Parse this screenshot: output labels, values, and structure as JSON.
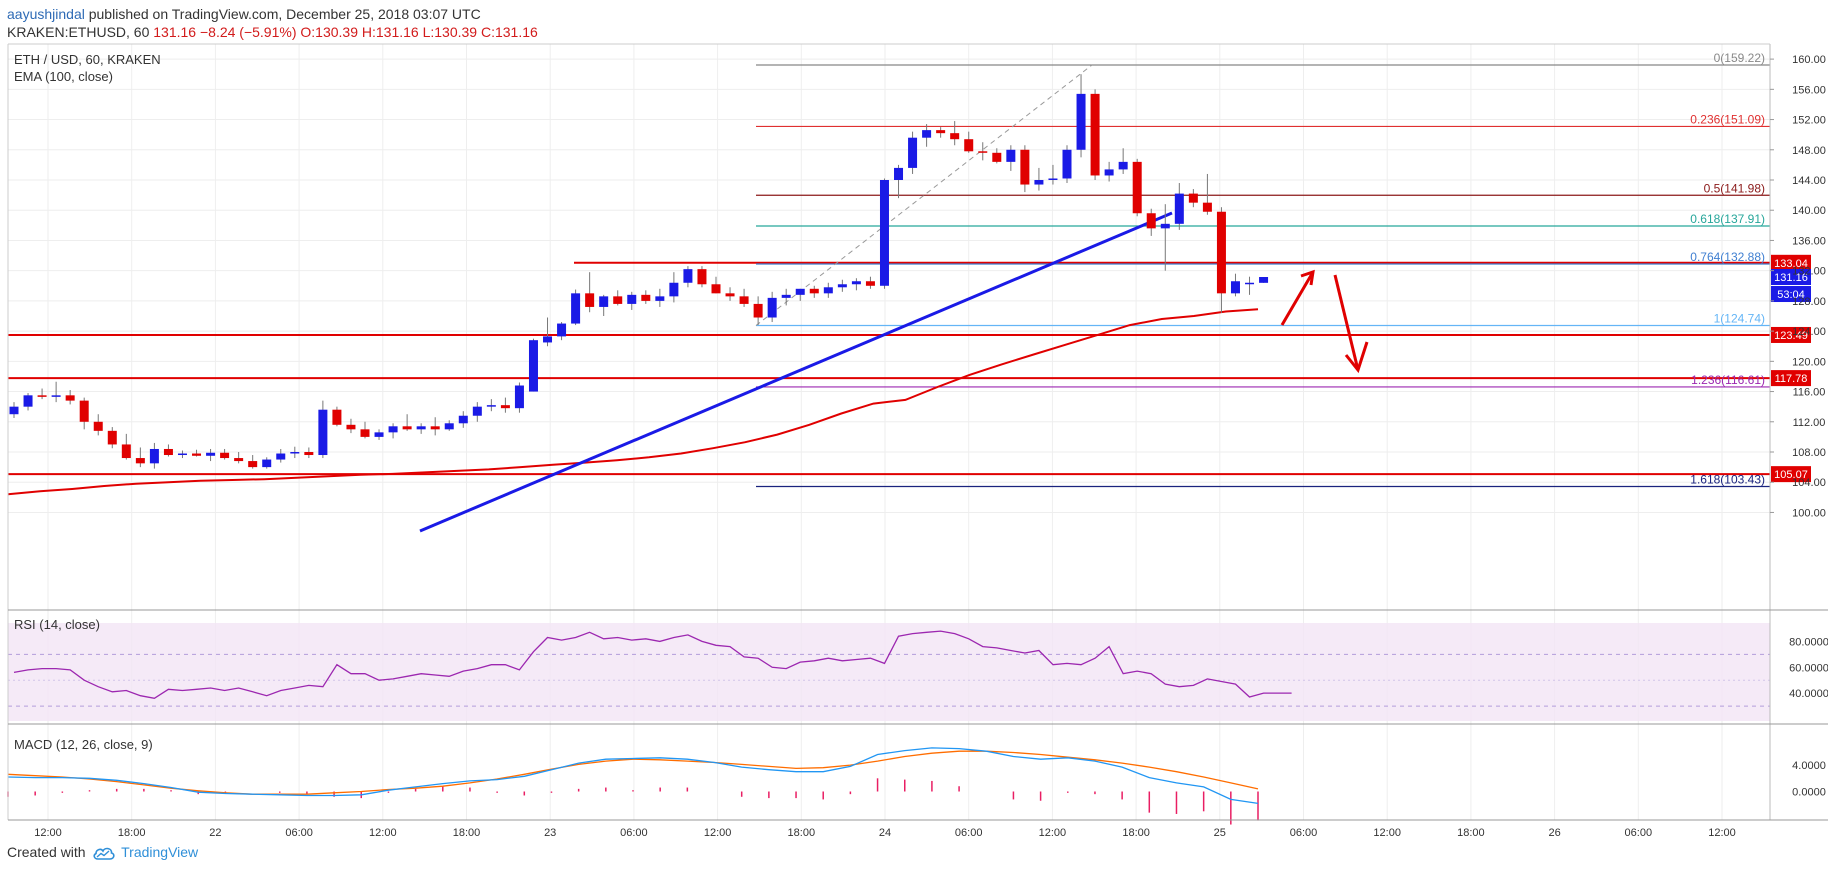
{
  "header": {
    "author": "aayushjindal",
    "published": "published on TradingView.com, December 25, 2018 03:07 UTC",
    "ticker": "KRAKEN:ETHUSD, 60",
    "change": "131.16 −8.24 (−5.91%)",
    "ohlc": "O:130.39 H:131.16 L:130.39 C:131.16"
  },
  "legend": {
    "symbol": "ETH / USD, 60, KRAKEN",
    "ema": "EMA (100, close)",
    "rsi": "RSI (14, close)",
    "macd": "MACD (12, 26, close, 9)"
  },
  "footer": {
    "created": "Created with",
    "brand": "TradingView"
  },
  "colors": {
    "bull": "#1a1ae6",
    "bear": "#e00000",
    "ema": "#e00000",
    "trendline": "#1a1ae6",
    "rsi": "#9c27b0",
    "macd": "#2196f3",
    "signal": "#ff6d00",
    "hist": "#e91e63"
  },
  "chart_data": {
    "type": "candlestick",
    "ylim": [
      99,
      162
    ],
    "price_axis": [
      "160.00",
      "156.00",
      "152.00",
      "148.00",
      "144.00",
      "140.00",
      "136.00",
      "132.00",
      "128.00",
      "124.00",
      "120.00",
      "116.00",
      "112.00",
      "108.00",
      "104.00",
      "100.00"
    ],
    "time_axis": [
      "12:00",
      "18:00",
      "22",
      "06:00",
      "12:00",
      "18:00",
      "23",
      "06:00",
      "12:00",
      "18:00",
      "24",
      "06:00",
      "12:00",
      "18:00",
      "25",
      "06:00",
      "12:00",
      "18:00",
      "26",
      "06:00",
      "12:00"
    ],
    "candles": [
      [
        113.0,
        114.6,
        112.5,
        114.0
      ],
      [
        114.0,
        115.8,
        113.5,
        115.5
      ],
      [
        115.5,
        116.4,
        115.0,
        115.3
      ],
      [
        115.3,
        117.3,
        114.6,
        115.5
      ],
      [
        115.5,
        116.2,
        114.3,
        114.8
      ],
      [
        114.8,
        115.2,
        111.0,
        112.0
      ],
      [
        112.0,
        113.0,
        110.2,
        110.8
      ],
      [
        110.8,
        111.3,
        108.5,
        109.0
      ],
      [
        109.0,
        110.4,
        107.0,
        107.2
      ],
      [
        107.2,
        108.6,
        106.0,
        106.5
      ],
      [
        106.5,
        109.2,
        105.8,
        108.4
      ],
      [
        108.4,
        109.0,
        107.4,
        107.6
      ],
      [
        107.6,
        108.2,
        107.2,
        107.8
      ],
      [
        107.8,
        108.3,
        107.4,
        107.5
      ],
      [
        107.5,
        108.4,
        106.8,
        107.9
      ],
      [
        107.9,
        108.4,
        107.0,
        107.2
      ],
      [
        107.2,
        108.0,
        106.5,
        106.8
      ],
      [
        106.8,
        107.6,
        105.8,
        106.0
      ],
      [
        106.0,
        107.3,
        105.8,
        107.0
      ],
      [
        107.0,
        108.4,
        106.6,
        107.8
      ],
      [
        107.8,
        108.7,
        107.2,
        108.0
      ],
      [
        108.0,
        108.6,
        107.2,
        107.6
      ],
      [
        107.6,
        114.8,
        107.2,
        113.6
      ],
      [
        113.6,
        114.0,
        111.4,
        111.6
      ],
      [
        111.6,
        112.4,
        110.5,
        111.0
      ],
      [
        111.0,
        112.0,
        109.8,
        110.0
      ],
      [
        110.0,
        111.0,
        109.6,
        110.6
      ],
      [
        110.6,
        111.8,
        109.8,
        111.4
      ],
      [
        111.4,
        113.0,
        110.8,
        111.0
      ],
      [
        111.0,
        111.8,
        110.4,
        111.4
      ],
      [
        111.4,
        112.6,
        110.2,
        111.0
      ],
      [
        111.0,
        112.2,
        110.8,
        111.8
      ],
      [
        111.8,
        113.4,
        111.2,
        112.8
      ],
      [
        112.8,
        114.6,
        112.0,
        114.0
      ],
      [
        114.0,
        115.0,
        113.4,
        114.2
      ],
      [
        114.2,
        115.2,
        113.2,
        113.8
      ],
      [
        113.8,
        117.2,
        113.2,
        116.8
      ],
      [
        116.0,
        123.0,
        116.0,
        122.8
      ],
      [
        122.5,
        125.8,
        122.0,
        123.3
      ],
      [
        123.3,
        125.2,
        122.8,
        125.0
      ],
      [
        125.0,
        129.5,
        124.8,
        129.0
      ],
      [
        129.0,
        131.8,
        126.5,
        127.2
      ],
      [
        127.2,
        128.8,
        126.0,
        128.6
      ],
      [
        128.6,
        129.4,
        127.4,
        127.6
      ],
      [
        127.6,
        129.2,
        126.8,
        128.8
      ],
      [
        128.8,
        129.4,
        127.6,
        128.0
      ],
      [
        128.0,
        129.6,
        127.2,
        128.6
      ],
      [
        128.6,
        131.8,
        127.8,
        130.4
      ],
      [
        130.4,
        132.6,
        129.8,
        132.2
      ],
      [
        132.2,
        132.6,
        129.8,
        130.2
      ],
      [
        130.2,
        131.2,
        129.0,
        129.0
      ],
      [
        129.0,
        129.8,
        128.0,
        128.6
      ],
      [
        128.6,
        129.6,
        127.2,
        127.6
      ],
      [
        127.6,
        128.6,
        124.8,
        125.8
      ],
      [
        125.8,
        129.2,
        125.2,
        128.4
      ],
      [
        128.4,
        129.6,
        127.4,
        128.8
      ],
      [
        128.8,
        129.6,
        128.0,
        129.6
      ],
      [
        129.6,
        130.0,
        128.4,
        129.0
      ],
      [
        129.0,
        130.4,
        128.4,
        129.8
      ],
      [
        129.8,
        130.8,
        129.2,
        130.2
      ],
      [
        130.2,
        131.0,
        129.4,
        130.6
      ],
      [
        130.6,
        131.2,
        129.6,
        130.0
      ],
      [
        130.0,
        144.2,
        129.6,
        144.0
      ],
      [
        144.0,
        146.0,
        141.6,
        145.6
      ],
      [
        145.6,
        150.4,
        144.8,
        149.6
      ],
      [
        149.6,
        151.4,
        148.4,
        150.6
      ],
      [
        150.6,
        151.0,
        149.6,
        150.2
      ],
      [
        150.2,
        151.8,
        148.6,
        149.4
      ],
      [
        149.4,
        150.4,
        147.6,
        147.8
      ],
      [
        147.8,
        149.0,
        146.6,
        147.6
      ],
      [
        147.6,
        148.2,
        146.2,
        146.4
      ],
      [
        146.4,
        148.6,
        145.2,
        148.0
      ],
      [
        148.0,
        148.6,
        142.4,
        143.4
      ],
      [
        143.4,
        145.6,
        142.6,
        144.0
      ],
      [
        144.0,
        146.0,
        143.4,
        144.2
      ],
      [
        144.2,
        148.6,
        143.6,
        148.0
      ],
      [
        148.0,
        158.0,
        147.0,
        155.4
      ],
      [
        155.4,
        156.0,
        144.0,
        144.6
      ],
      [
        144.6,
        146.4,
        143.8,
        145.4
      ],
      [
        145.4,
        148.2,
        144.8,
        146.4
      ],
      [
        146.4,
        146.8,
        139.2,
        139.6
      ],
      [
        139.6,
        140.2,
        136.6,
        137.6
      ],
      [
        137.6,
        140.8,
        132.0,
        138.2
      ],
      [
        138.2,
        143.6,
        137.4,
        142.2
      ],
      [
        142.2,
        142.8,
        140.4,
        141.0
      ],
      [
        141.0,
        144.8,
        139.4,
        139.8
      ],
      [
        139.8,
        140.4,
        126.4,
        129.0
      ],
      [
        129.0,
        131.6,
        128.6,
        130.6
      ],
      [
        130.4,
        131.2,
        128.8,
        130.4
      ],
      [
        130.39,
        131.16,
        130.39,
        131.16
      ]
    ],
    "ema100": [
      102.4,
      102.8,
      103.1,
      103.5,
      103.8,
      104.0,
      104.2,
      104.3,
      104.4,
      104.6,
      104.8,
      105.0,
      105.1,
      105.3,
      105.5,
      105.7,
      106.0,
      106.3,
      106.6,
      106.9,
      107.3,
      107.8,
      108.5,
      109.3,
      110.3,
      111.6,
      113.1,
      114.4,
      114.9,
      116.6,
      118.2,
      119.6,
      120.9,
      122.2,
      123.5,
      124.8,
      125.6,
      126.0,
      126.6,
      126.9
    ],
    "levels": [
      {
        "name": "resistance-133",
        "value": 133.04,
        "label": "133.04"
      },
      {
        "name": "support-123",
        "value": 123.49,
        "label": "123.49"
      },
      {
        "name": "support-117",
        "value": 117.78,
        "label": "117.78"
      },
      {
        "name": "support-105",
        "value": 105.07,
        "label": "105.07"
      }
    ],
    "last_price": {
      "value": 131.16,
      "label": "131.16",
      "countdown": "53:04"
    },
    "fibonacci": [
      {
        "ratio": "0",
        "value": 159.22,
        "label": "0(159.22)",
        "color": "#888888"
      },
      {
        "ratio": "0.236",
        "value": 151.09,
        "label": "0.236(151.09)",
        "color": "#e03030"
      },
      {
        "ratio": "0.5",
        "value": 141.98,
        "label": "0.5(141.98)",
        "color": "#8b1a1a"
      },
      {
        "ratio": "0.618",
        "value": 137.91,
        "label": "0.618(137.91)",
        "color": "#26a69a"
      },
      {
        "ratio": "0.764",
        "value": 132.88,
        "label": "0.764(132.88)",
        "color": "#3f7fd1"
      },
      {
        "ratio": "1",
        "value": 124.74,
        "label": "1(124.74)",
        "color": "#64b5f6"
      },
      {
        "ratio": "1.236",
        "value": 116.61,
        "label": "1.236(116.61)",
        "color": "#9c27b0"
      },
      {
        "ratio": "1.618",
        "value": 103.43,
        "label": "1.618(103.43)",
        "color": "#1a237e"
      }
    ],
    "rsi": {
      "ylim": [
        20,
        95
      ],
      "axis": [
        "80.0000",
        "60.0000",
        "40.0000"
      ],
      "band": [
        30,
        70
      ],
      "values": [
        56,
        58,
        59,
        59,
        58,
        50,
        45,
        41,
        42,
        38,
        36,
        43,
        42,
        43,
        44,
        42,
        44,
        41,
        38,
        42,
        44,
        46,
        45,
        62,
        55,
        55,
        50,
        51,
        53,
        55,
        54,
        53,
        57,
        59,
        62,
        62,
        58,
        72,
        83,
        81,
        83,
        87,
        82,
        83,
        81,
        82,
        80,
        83,
        85,
        80,
        77,
        76,
        68,
        67,
        60,
        59,
        64,
        65,
        67,
        65,
        66,
        67,
        63,
        84,
        86,
        87,
        88,
        86,
        82,
        76,
        75,
        73,
        71,
        73,
        62,
        63,
        62,
        67,
        76,
        55,
        57,
        55,
        47,
        45,
        46,
        51,
        49,
        47,
        37,
        40,
        40,
        40
      ]
    },
    "macd": {
      "ylim": [
        -2.8,
        7.8
      ],
      "axis": [
        "4.0000",
        "0.0000"
      ],
      "macd_line": [
        2.2,
        2.1,
        2.1,
        2.0,
        1.7,
        1.2,
        0.6,
        -0.1,
        -0.3,
        -0.4,
        -0.5,
        -0.6,
        -0.6,
        -0.5,
        0.2,
        0.7,
        1.2,
        1.6,
        1.8,
        2.3,
        3.3,
        4.3,
        4.9,
        5.0,
        5.1,
        4.9,
        4.4,
        3.7,
        3.3,
        3.0,
        3.0,
        3.8,
        5.6,
        6.2,
        6.6,
        6.5,
        6.1,
        5.3,
        4.9,
        5.1,
        4.6,
        3.7,
        2.1,
        1.3,
        0.7,
        -1.2,
        -1.8
      ],
      "signal_line": [
        2.6,
        2.4,
        2.2,
        1.9,
        1.5,
        1.0,
        0.5,
        0.1,
        -0.2,
        -0.4,
        -0.4,
        -0.4,
        -0.2,
        0.0,
        0.3,
        0.5,
        0.8,
        1.3,
        1.9,
        2.6,
        3.4,
        4.1,
        4.6,
        4.9,
        4.8,
        4.6,
        4.4,
        4.1,
        3.8,
        3.5,
        3.6,
        4.0,
        4.6,
        5.3,
        5.8,
        6.1,
        6.1,
        5.9,
        5.6,
        5.2,
        4.8,
        4.3,
        3.7,
        3.0,
        2.2,
        1.3,
        0.4
      ]
    },
    "price_values": [
      160,
      156,
      152,
      148,
      144,
      140,
      136,
      132,
      128,
      124,
      120,
      116,
      112,
      108,
      104,
      100
    ]
  }
}
